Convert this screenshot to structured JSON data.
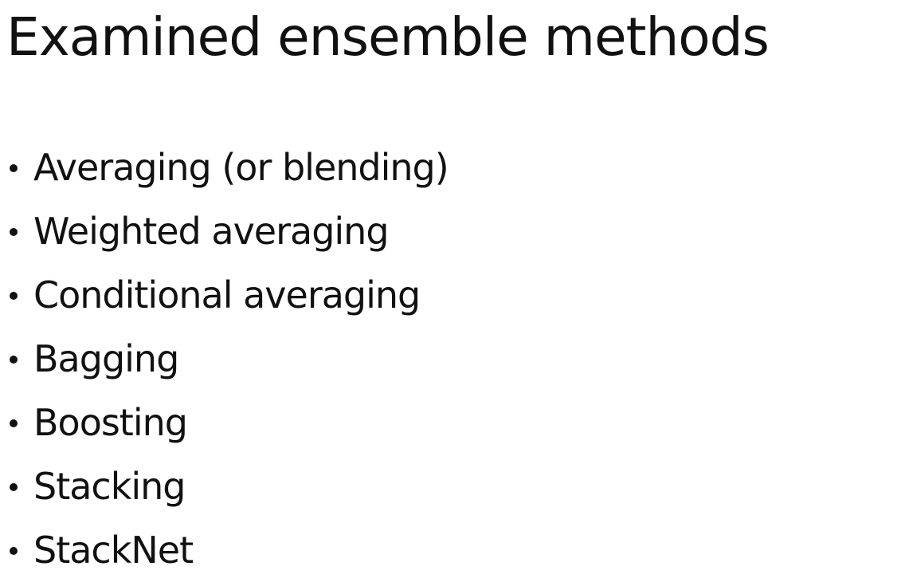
{
  "slide": {
    "title": "Examined ensemble methods",
    "bullets": [
      "Averaging (or blending)",
      "Weighted averaging",
      "Conditional averaging",
      "Bagging",
      "Boosting",
      "Stacking",
      "StackNet"
    ]
  }
}
